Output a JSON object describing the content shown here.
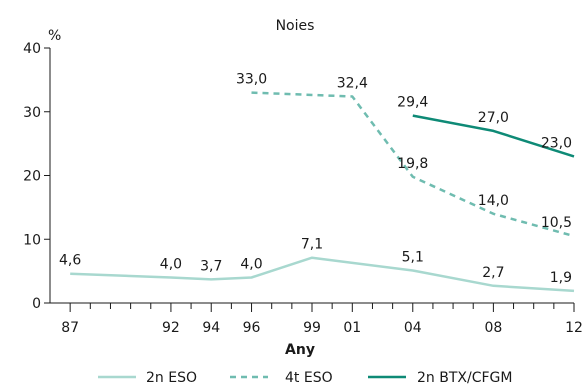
{
  "chart_data": {
    "type": "line",
    "title": "Noies",
    "ylabel": "%",
    "xlabel": "Any",
    "ylim": [
      0,
      40
    ],
    "yticks": [
      0,
      10,
      20,
      30,
      40
    ],
    "x_range": [
      1986,
      2012
    ],
    "x_tick_labels": [
      {
        "x": 1987,
        "label": "87"
      },
      {
        "x": 1992,
        "label": "92"
      },
      {
        "x": 1994,
        "label": "94"
      },
      {
        "x": 1996,
        "label": "96"
      },
      {
        "x": 1999,
        "label": "99"
      },
      {
        "x": 2001,
        "label": "01"
      },
      {
        "x": 2004,
        "label": "04"
      },
      {
        "x": 2008,
        "label": "08"
      },
      {
        "x": 2012,
        "label": "12"
      }
    ],
    "minor_ticks": [
      1988,
      1989,
      1990,
      1991,
      1993,
      1995,
      1997,
      1998,
      2000,
      2002,
      2003,
      2005,
      2006,
      2007,
      2009,
      2010,
      2011
    ],
    "grid": false,
    "legend_position": "bottom",
    "series": [
      {
        "name": "2n ESO",
        "color": "#a8d8cf",
        "dash": "solid",
        "points": [
          {
            "x": 1987,
            "y": 4.6,
            "label": "4,6"
          },
          {
            "x": 1992,
            "y": 4.0,
            "label": "4,0"
          },
          {
            "x": 1994,
            "y": 3.7,
            "label": "3,7"
          },
          {
            "x": 1996,
            "y": 4.0,
            "label": "4,0"
          },
          {
            "x": 1999,
            "y": 7.1,
            "label": "7,1"
          },
          {
            "x": 2004,
            "y": 5.1,
            "label": "5,1"
          },
          {
            "x": 2008,
            "y": 2.7,
            "label": "2,7"
          },
          {
            "x": 2012,
            "y": 1.9,
            "label": "1,9"
          }
        ]
      },
      {
        "name": "4t ESO",
        "color": "#6fbcb0",
        "dash": "dashed",
        "points": [
          {
            "x": 1996,
            "y": 33.0,
            "label": "33,0"
          },
          {
            "x": 2001,
            "y": 32.4,
            "label": "32,4"
          },
          {
            "x": 2004,
            "y": 19.8,
            "label": "19,8"
          },
          {
            "x": 2008,
            "y": 14.0,
            "label": "14,0"
          },
          {
            "x": 2012,
            "y": 10.5,
            "label": "10,5"
          }
        ]
      },
      {
        "name": "2n BTX/CFGM",
        "color": "#0e8a76",
        "dash": "solid",
        "points": [
          {
            "x": 2004,
            "y": 29.4,
            "label": "29,4"
          },
          {
            "x": 2008,
            "y": 27.0,
            "label": "27,0"
          },
          {
            "x": 2012,
            "y": 23.0,
            "label": "23,0"
          }
        ]
      }
    ]
  }
}
